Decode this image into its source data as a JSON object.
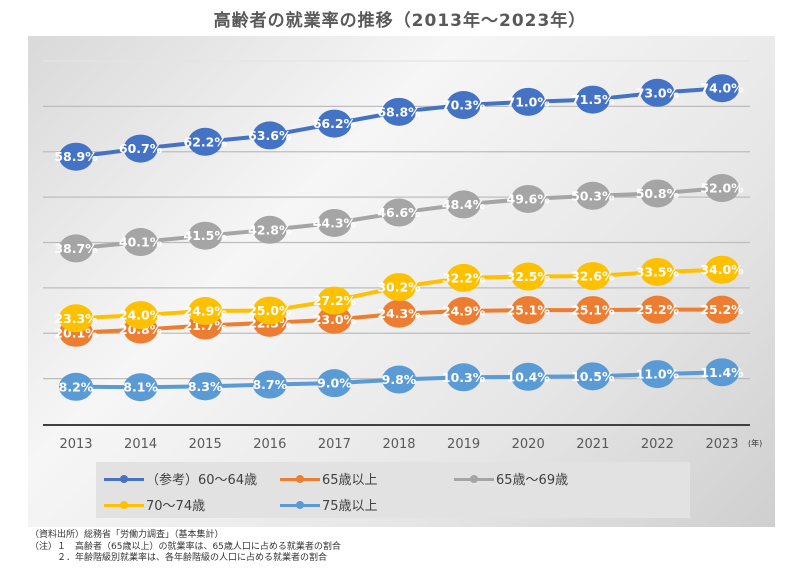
{
  "chart_data": {
    "type": "line",
    "title": "高齢者の就業率の推移（2013年～2023年）",
    "x": [
      "2013",
      "2014",
      "2015",
      "2016",
      "2017",
      "2018",
      "2019",
      "2020",
      "2021",
      "2022",
      "2023"
    ],
    "x_unit_label": "(年)",
    "ylim": [
      0,
      80
    ],
    "y_grid_step": 10,
    "grid": true,
    "y_tick_labels_shown": false,
    "legend_position": "bottom",
    "series": [
      {
        "name": "（参考）60～64歳",
        "color": "#4472C4",
        "values": [
          58.9,
          60.7,
          62.2,
          63.6,
          66.2,
          68.8,
          70.3,
          71.0,
          71.5,
          73.0,
          74.0
        ]
      },
      {
        "name": "65歳以上",
        "color": "#ED7D31",
        "values": [
          20.1,
          20.8,
          21.7,
          22.3,
          23.0,
          24.3,
          24.9,
          25.1,
          25.1,
          25.2,
          25.2
        ]
      },
      {
        "name": "65歳～69歳",
        "color": "#A5A5A5",
        "values": [
          38.7,
          40.1,
          41.5,
          42.8,
          44.3,
          46.6,
          48.4,
          49.6,
          50.3,
          50.8,
          52.0
        ]
      },
      {
        "name": "70～74歳",
        "color": "#FFC000",
        "values": [
          23.3,
          24.0,
          24.9,
          25.0,
          27.2,
          30.2,
          32.2,
          32.5,
          32.6,
          33.5,
          34.0
        ]
      },
      {
        "name": "75歳以上",
        "color": "#5B9BD5",
        "values": [
          8.2,
          8.1,
          8.3,
          8.7,
          9.0,
          9.8,
          10.3,
          10.4,
          10.5,
          11.0,
          11.4
        ]
      }
    ],
    "data_label_format": "{v}%"
  },
  "notes": [
    "（資料出所）総務省「労働力調査」（基本集計）",
    "（注）１　高齢者（65歳以上）の就業率は、65歳人口に占める就業者の割合",
    "　　　２．年齢階級別就業率は、各年齢階級の人口に占める就業者の割合"
  ]
}
